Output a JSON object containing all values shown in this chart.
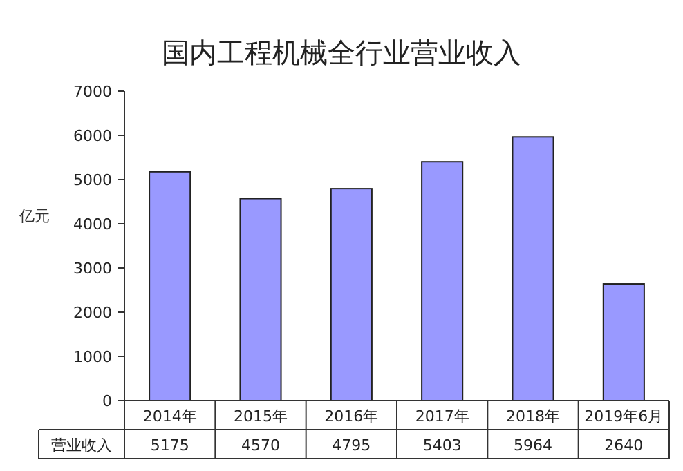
{
  "chart_data": {
    "type": "bar",
    "title": "国内工程机械全行业营业收入",
    "ylabel": "亿元",
    "categories": [
      "2014年",
      "2015年",
      "2016年",
      "2017年",
      "2018年",
      "2019年6月"
    ],
    "series": [
      {
        "name": "营业收入",
        "color": "#9999ff",
        "values": [
          5175,
          4570,
          4795,
          5403,
          5964,
          2640
        ]
      }
    ],
    "ylim": [
      0,
      7000
    ],
    "yticks": [
      0,
      1000,
      2000,
      3000,
      4000,
      5000,
      6000,
      7000
    ],
    "data_labels": true
  }
}
